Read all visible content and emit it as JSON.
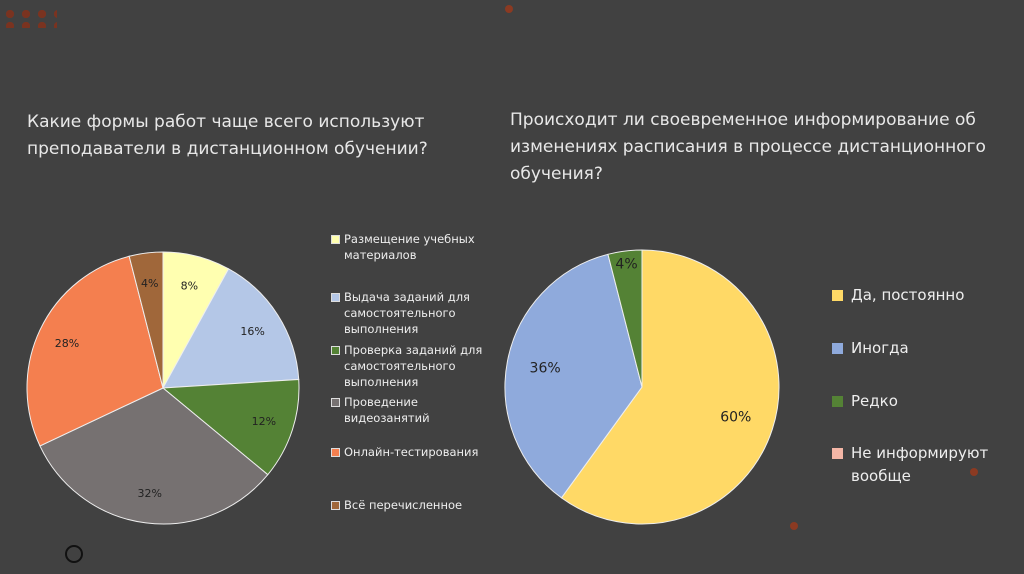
{
  "chart_data": [
    {
      "type": "pie",
      "title": "Какие формы работ чаще всего используют преподаватели в дистанционном обучении?",
      "categories": [
        "Размещение учебных материалов",
        "Выдача заданий для самостоятельного выполнения",
        "Проверка заданий для самостоятельного выполнения",
        "Проведение видеозанятий",
        "Онлайн-тестирования",
        "Всё перечисленное"
      ],
      "values": [
        8,
        16,
        12,
        32,
        28,
        4
      ],
      "labels": [
        "8%",
        "16%",
        "12%",
        "32%",
        "28%",
        "4%"
      ],
      "colors": [
        "#FFFFB0",
        "#B4C7E7",
        "#548235",
        "#767171",
        "#F47F4F",
        "#A0673A"
      ],
      "legend": "right"
    },
    {
      "type": "pie",
      "title": "Происходит ли своевременное информирование об изменениях расписания в процессе дистанционного обучения?",
      "categories": [
        "Да, постоянно",
        "Иногда",
        "Редко",
        "Не информируют вообще"
      ],
      "values": [
        60,
        36,
        4,
        0
      ],
      "labels": [
        "60%",
        "36%",
        "4%",
        ""
      ],
      "colors": [
        "#FFD966",
        "#8FAADC",
        "#548235",
        "#F4B6A6"
      ],
      "legend": "right"
    }
  ]
}
